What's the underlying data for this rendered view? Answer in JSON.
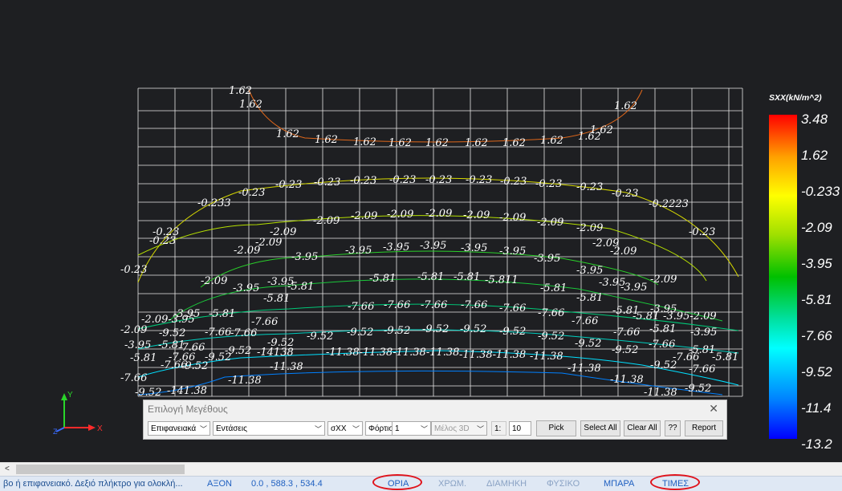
{
  "legend": {
    "title": "SXX(kN/m^2)",
    "ticks": [
      "3.48",
      "1.62",
      "-0.233",
      "-2.09",
      "-3.95",
      "-5.81",
      "-7.66",
      "-9.52",
      "-11.4",
      "-13.2"
    ]
  },
  "contour_labels": {
    "c162": "1.62",
    "c023": "-0.23",
    "c209": "-2.09",
    "c395": "-3.95",
    "c581": "-5.81",
    "c766": "-7.66",
    "c952": "-9.52",
    "c1138": "-11.38",
    "c1138b": "-11.38-11.38-11.38-11.38",
    "c1138c": "-11.38-11.38",
    "c1138d": "-141.38",
    "c1138e": "-14138",
    "c581b": "-5.811",
    "c023b": "-0.233",
    "c023c": "-0.2223",
    "c209b": "-2.09-3.95",
    "c209c": "-3.95-2.09"
  },
  "axes": {
    "x": "X",
    "y": "Y",
    "z": "Z"
  },
  "dialog": {
    "title": "Επιλογή Μεγέθους",
    "close": "✕",
    "sel_surface": "Επιφανειακά",
    "sel_type": "Εντάσεις",
    "sel_component": "σXX",
    "sel_load": "Φόρτιση",
    "sel_loadnum": "1",
    "sel_member": "Μέλος 3D",
    "ratio_label": "1:",
    "ratio_value": "10",
    "btn_pick": "Pick",
    "btn_select_all": "Select All",
    "btn_clear_all": "Clear All",
    "btn_help": "??",
    "btn_report": "Report"
  },
  "statusbar": {
    "hint": "βο ή επιφανειακό. Δεξιό πλήκτρο για ολοκλή...",
    "axes_label": "ΑΞΟΝ",
    "coords": "0.0 , 588.3 , 534.4",
    "limits": "ΟΡΙΑ",
    "colors": "ΧΡΩΜ.",
    "dimension": "ΔΙΑΜΗΚΗ",
    "physical": "ΦΥΣΙΚΟ",
    "bar": "ΜΠΑΡΑ",
    "values": "ΤΙΜΕΣ"
  }
}
